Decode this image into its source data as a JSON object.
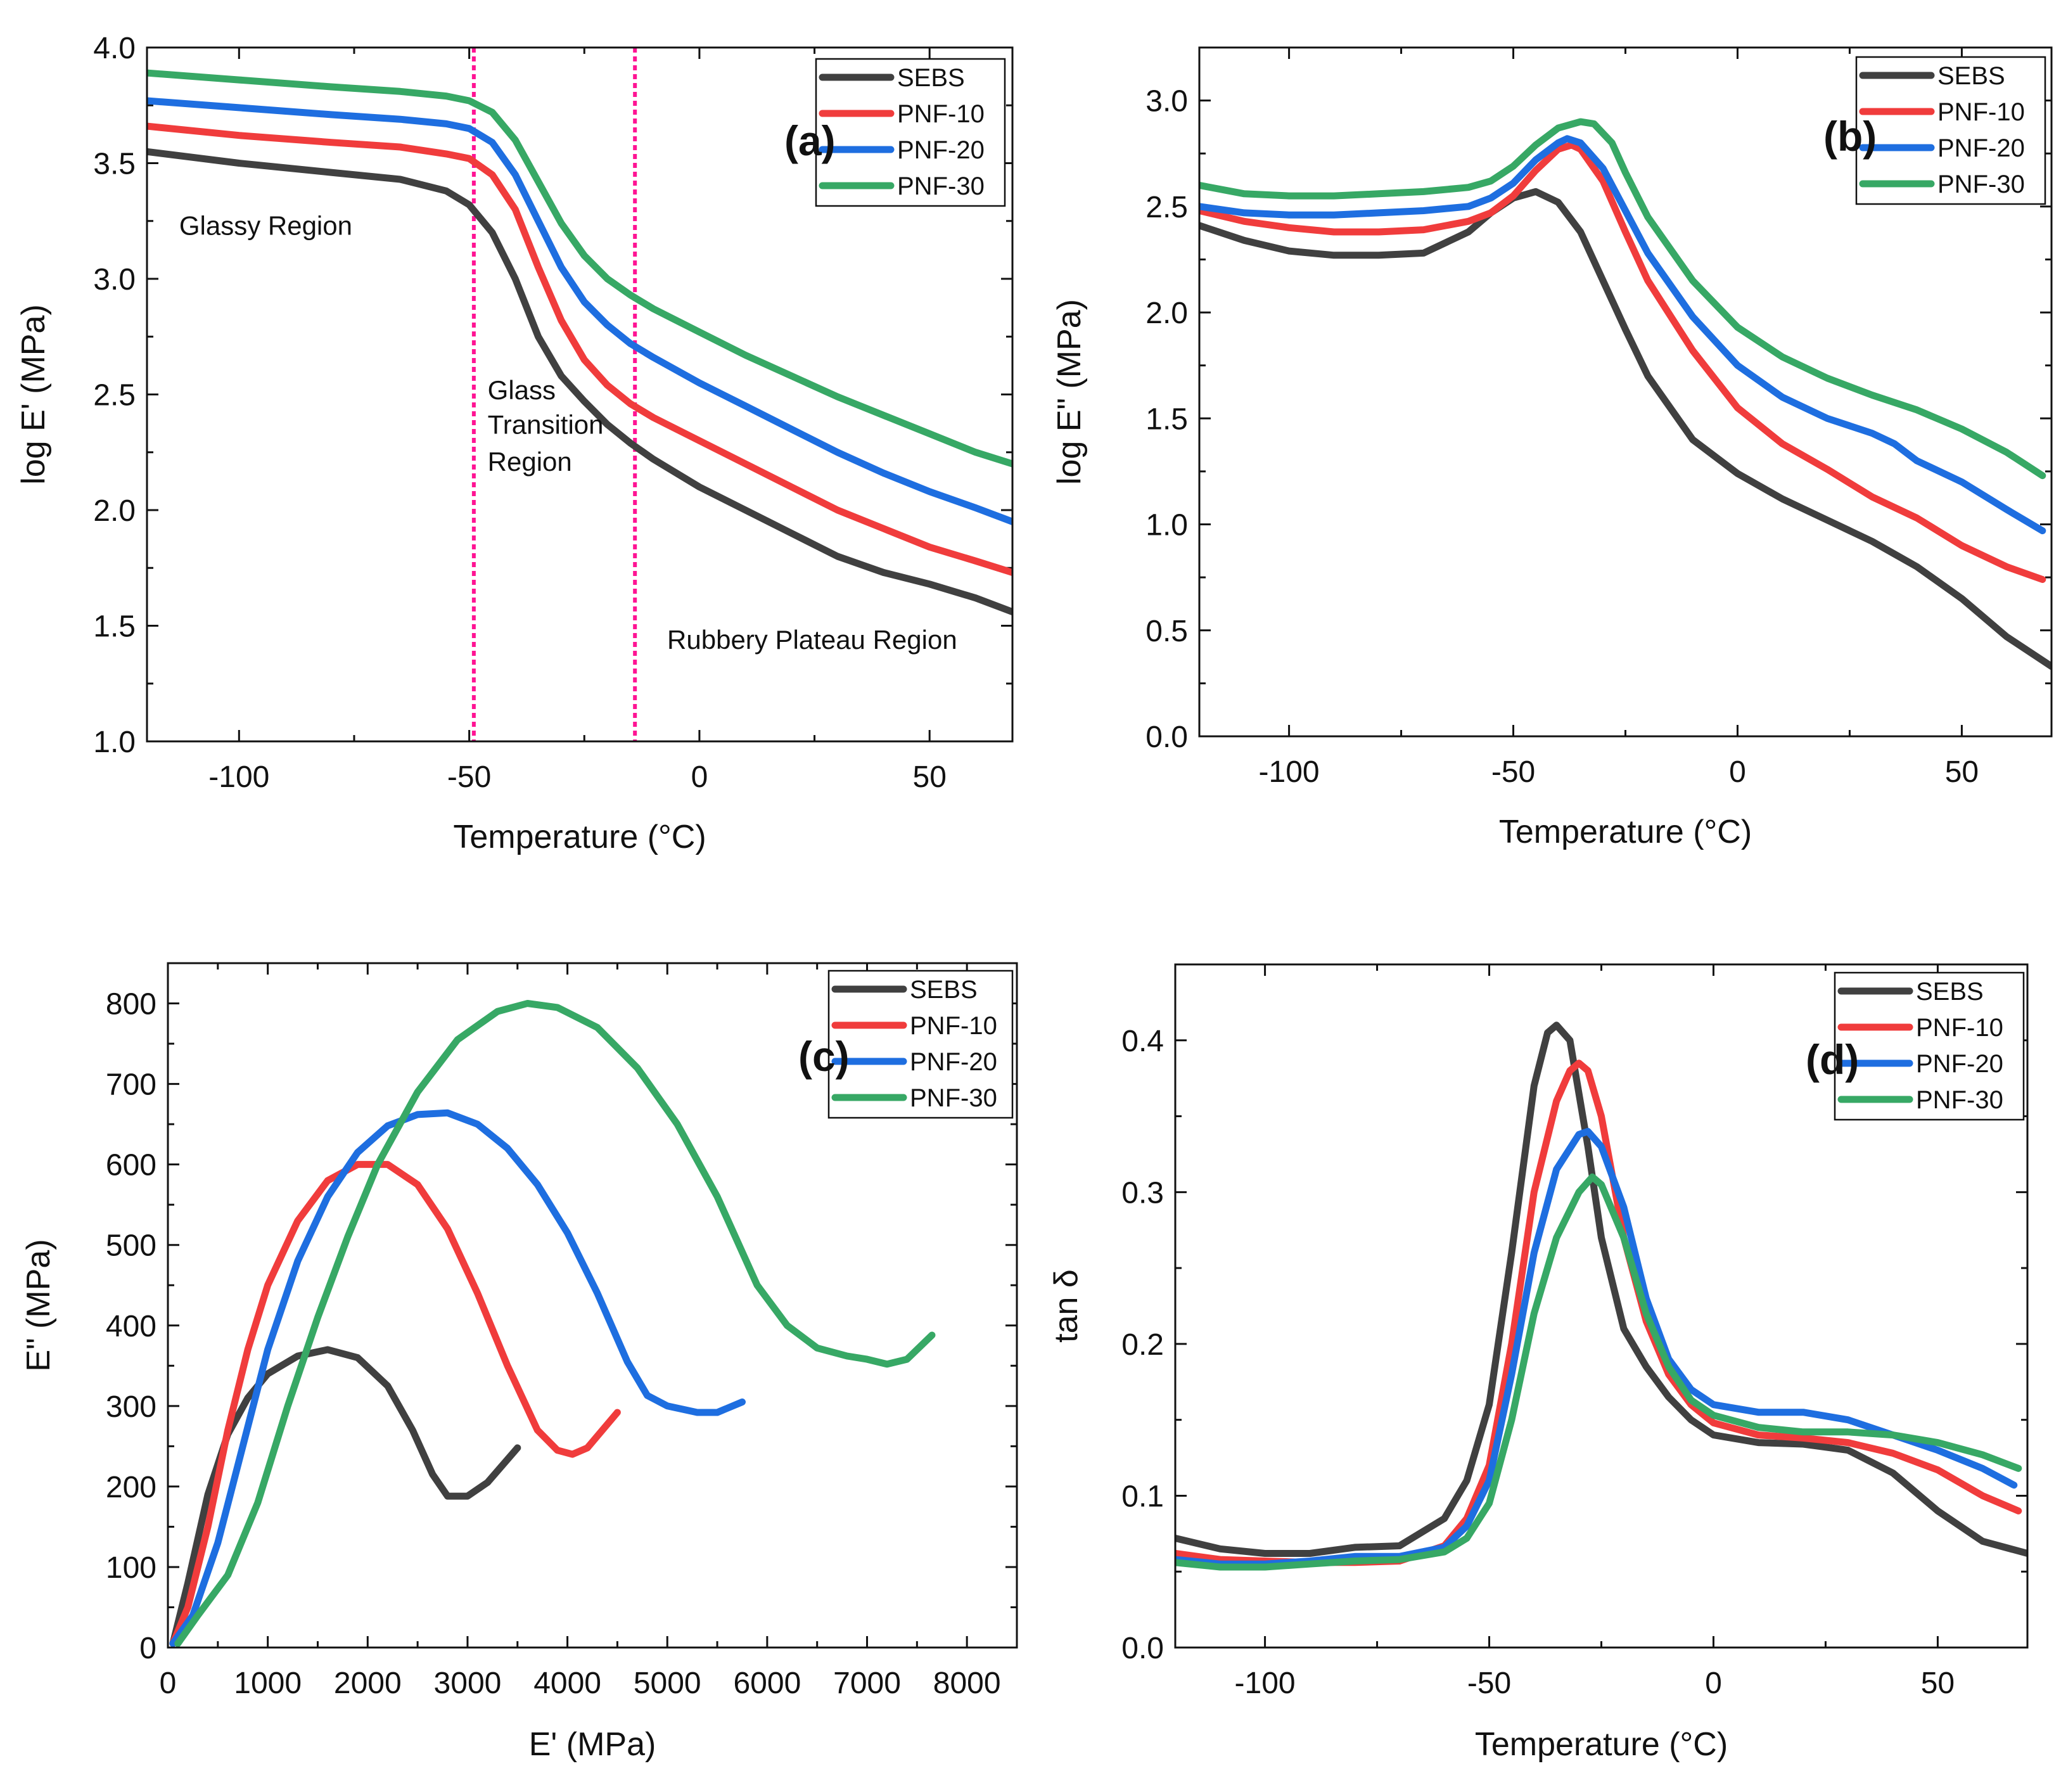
{
  "figure": {
    "colors": {
      "SEBS": "#404040",
      "PNF-10": "#f03c3c",
      "PNF-20": "#1e6ee0",
      "PNF-30": "#37a865",
      "marker": "#ff1493"
    }
  },
  "chart_data": [
    {
      "id": "a",
      "type": "line",
      "panel_label": "(a)",
      "xlabel": "Temperature (°C)",
      "ylabel": "log E' (MPa)",
      "xlim": [
        -120,
        68
      ],
      "ylim": [
        1.0,
        4.0
      ],
      "xticks": [
        -100,
        -50,
        0,
        50
      ],
      "xtick_labels": [
        "-100",
        "-50",
        "0",
        "50"
      ],
      "yticks": [
        1.0,
        1.5,
        2.0,
        2.5,
        3.0,
        3.5,
        4.0
      ],
      "ytick_labels": [
        "1.0",
        "1.5",
        "2.0",
        "2.5",
        "3.0",
        "3.5",
        "4.0"
      ],
      "legend": [
        "SEBS",
        "PNF-10",
        "PNF-20",
        "PNF-30"
      ],
      "annotations": [
        {
          "text": "Glassy Region",
          "x": -113,
          "y": 3.19
        },
        {
          "text": "Glass",
          "x": -46,
          "y": 2.48
        },
        {
          "text": "Transition",
          "x": -46,
          "y": 2.33
        },
        {
          "text": "Region",
          "x": -46,
          "y": 2.17
        },
        {
          "text": "Rubbery Plateau Region",
          "x": -7,
          "y": 1.4
        }
      ],
      "vlines": [
        -49,
        -14
      ],
      "series": [
        {
          "name": "SEBS",
          "x": [
            -120,
            -100,
            -80,
            -65,
            -55,
            -50,
            -45,
            -40,
            -35,
            -30,
            -25,
            -20,
            -15,
            -10,
            0,
            10,
            20,
            30,
            40,
            50,
            60,
            68
          ],
          "y": [
            3.55,
            3.5,
            3.46,
            3.43,
            3.38,
            3.32,
            3.2,
            3.0,
            2.75,
            2.58,
            2.47,
            2.37,
            2.29,
            2.22,
            2.1,
            2.0,
            1.9,
            1.8,
            1.73,
            1.68,
            1.62,
            1.56
          ]
        },
        {
          "name": "PNF-10",
          "x": [
            -120,
            -100,
            -80,
            -65,
            -55,
            -50,
            -45,
            -40,
            -35,
            -30,
            -25,
            -20,
            -15,
            -10,
            0,
            10,
            20,
            30,
            40,
            50,
            60,
            68
          ],
          "y": [
            3.66,
            3.62,
            3.59,
            3.57,
            3.54,
            3.52,
            3.45,
            3.3,
            3.05,
            2.82,
            2.65,
            2.54,
            2.46,
            2.4,
            2.3,
            2.2,
            2.1,
            2.0,
            1.92,
            1.84,
            1.78,
            1.73
          ]
        },
        {
          "name": "PNF-20",
          "x": [
            -120,
            -100,
            -80,
            -65,
            -55,
            -50,
            -45,
            -40,
            -35,
            -30,
            -25,
            -20,
            -15,
            -10,
            0,
            10,
            20,
            30,
            40,
            50,
            60,
            68
          ],
          "y": [
            3.77,
            3.74,
            3.71,
            3.69,
            3.67,
            3.65,
            3.59,
            3.45,
            3.25,
            3.05,
            2.9,
            2.8,
            2.72,
            2.66,
            2.55,
            2.45,
            2.35,
            2.25,
            2.16,
            2.08,
            2.01,
            1.95
          ]
        },
        {
          "name": "PNF-30",
          "x": [
            -120,
            -100,
            -80,
            -65,
            -55,
            -50,
            -45,
            -40,
            -35,
            -30,
            -25,
            -20,
            -15,
            -10,
            0,
            10,
            20,
            30,
            40,
            50,
            60,
            68
          ],
          "y": [
            3.89,
            3.86,
            3.83,
            3.81,
            3.79,
            3.77,
            3.72,
            3.6,
            3.42,
            3.24,
            3.1,
            3.0,
            2.93,
            2.87,
            2.77,
            2.67,
            2.58,
            2.49,
            2.41,
            2.33,
            2.25,
            2.2
          ]
        }
      ]
    },
    {
      "id": "b",
      "type": "line",
      "panel_label": "(b)",
      "xlabel": "Temperature (°C)",
      "ylabel": "log E\" (MPa)",
      "xlim": [
        -120,
        70
      ],
      "ylim": [
        0.0,
        3.25
      ],
      "xticks": [
        -100,
        -50,
        0,
        50
      ],
      "xtick_labels": [
        "-100",
        "-50",
        "0",
        "50"
      ],
      "yticks": [
        0.0,
        0.5,
        1.0,
        1.5,
        2.0,
        2.5,
        3.0
      ],
      "ytick_labels": [
        "0.0",
        "0.5",
        "1.0",
        "1.5",
        "2.0",
        "2.5",
        "3.0"
      ],
      "legend": [
        "SEBS",
        "PNF-10",
        "PNF-20",
        "PNF-30"
      ],
      "series": [
        {
          "name": "SEBS",
          "x": [
            -120,
            -110,
            -100,
            -90,
            -80,
            -70,
            -60,
            -55,
            -50,
            -45,
            -40,
            -35,
            -30,
            -25,
            -20,
            -10,
            0,
            10,
            20,
            30,
            40,
            50,
            60,
            70
          ],
          "y": [
            2.41,
            2.34,
            2.29,
            2.27,
            2.27,
            2.28,
            2.38,
            2.47,
            2.54,
            2.57,
            2.52,
            2.38,
            2.15,
            1.92,
            1.7,
            1.4,
            1.24,
            1.12,
            1.02,
            0.92,
            0.8,
            0.65,
            0.47,
            0.33
          ]
        },
        {
          "name": "PNF-10",
          "x": [
            -120,
            -110,
            -100,
            -90,
            -80,
            -70,
            -60,
            -55,
            -50,
            -45,
            -40,
            -37,
            -35,
            -30,
            -25,
            -20,
            -10,
            0,
            10,
            20,
            30,
            40,
            50,
            60,
            68
          ],
          "y": [
            2.48,
            2.43,
            2.4,
            2.38,
            2.38,
            2.39,
            2.43,
            2.47,
            2.55,
            2.67,
            2.77,
            2.79,
            2.77,
            2.62,
            2.38,
            2.15,
            1.82,
            1.55,
            1.38,
            1.26,
            1.13,
            1.03,
            0.9,
            0.8,
            0.74
          ]
        },
        {
          "name": "PNF-20",
          "x": [
            -120,
            -110,
            -100,
            -90,
            -80,
            -70,
            -60,
            -55,
            -50,
            -45,
            -40,
            -38,
            -35,
            -30,
            -25,
            -20,
            -10,
            0,
            10,
            20,
            30,
            35,
            40,
            50,
            60,
            68
          ],
          "y": [
            2.5,
            2.47,
            2.46,
            2.46,
            2.47,
            2.48,
            2.5,
            2.54,
            2.61,
            2.72,
            2.8,
            2.82,
            2.8,
            2.68,
            2.48,
            2.28,
            1.98,
            1.75,
            1.6,
            1.5,
            1.43,
            1.38,
            1.3,
            1.2,
            1.07,
            0.97
          ]
        },
        {
          "name": "PNF-30",
          "x": [
            -120,
            -110,
            -100,
            -90,
            -80,
            -70,
            -60,
            -55,
            -50,
            -45,
            -40,
            -35,
            -32,
            -28,
            -25,
            -20,
            -10,
            0,
            10,
            20,
            30,
            40,
            50,
            60,
            68
          ],
          "y": [
            2.6,
            2.56,
            2.55,
            2.55,
            2.56,
            2.57,
            2.59,
            2.62,
            2.69,
            2.79,
            2.87,
            2.9,
            2.89,
            2.8,
            2.66,
            2.45,
            2.15,
            1.93,
            1.79,
            1.69,
            1.61,
            1.54,
            1.45,
            1.34,
            1.23
          ]
        }
      ]
    },
    {
      "id": "c",
      "type": "line",
      "panel_label": "(c)",
      "xlabel": "E' (MPa)",
      "ylabel": "E\" (MPa)",
      "xlim": [
        0,
        8500
      ],
      "ylim": [
        0,
        850
      ],
      "xticks": [
        0,
        1000,
        2000,
        3000,
        4000,
        5000,
        6000,
        7000,
        8000
      ],
      "xtick_labels": [
        "0",
        "1000",
        "2000",
        "3000",
        "4000",
        "5000",
        "6000",
        "7000",
        "8000"
      ],
      "yticks": [
        0,
        100,
        200,
        300,
        400,
        500,
        600,
        700,
        800
      ],
      "ytick_labels": [
        "0",
        "100",
        "200",
        "300",
        "400",
        "500",
        "600",
        "700",
        "800"
      ],
      "legend": [
        "SEBS",
        "PNF-10",
        "PNF-20",
        "PNF-30"
      ],
      "series": [
        {
          "name": "SEBS",
          "x": [
            50,
            200,
            400,
            600,
            800,
            1000,
            1300,
            1600,
            1900,
            2200,
            2450,
            2650,
            2800,
            3000,
            3200,
            3500
          ],
          "y": [
            5,
            80,
            190,
            265,
            310,
            340,
            362,
            370,
            360,
            325,
            270,
            215,
            188,
            188,
            205,
            248
          ]
        },
        {
          "name": "PNF-10",
          "x": [
            50,
            200,
            400,
            600,
            800,
            1000,
            1300,
            1600,
            1900,
            2200,
            2500,
            2800,
            3100,
            3400,
            3700,
            3900,
            4050,
            4200,
            4500
          ],
          "y": [
            5,
            50,
            150,
            270,
            370,
            450,
            530,
            580,
            600,
            600,
            575,
            520,
            440,
            350,
            270,
            245,
            240,
            248,
            292
          ]
        },
        {
          "name": "PNF-20",
          "x": [
            50,
            250,
            500,
            750,
            1000,
            1300,
            1600,
            1900,
            2200,
            2500,
            2800,
            3100,
            3400,
            3700,
            4000,
            4300,
            4600,
            4800,
            5000,
            5300,
            5500,
            5750
          ],
          "y": [
            5,
            40,
            130,
            250,
            370,
            480,
            560,
            615,
            648,
            662,
            664,
            650,
            620,
            575,
            515,
            440,
            355,
            313,
            300,
            292,
            292,
            305
          ]
        },
        {
          "name": "PNF-30",
          "x": [
            100,
            300,
            600,
            900,
            1200,
            1500,
            1800,
            2100,
            2500,
            2900,
            3300,
            3600,
            3900,
            4300,
            4700,
            5100,
            5500,
            5900,
            6200,
            6500,
            6800,
            7000,
            7200,
            7400,
            7650
          ],
          "y": [
            5,
            40,
            90,
            180,
            300,
            410,
            510,
            600,
            690,
            755,
            790,
            800,
            795,
            770,
            720,
            650,
            560,
            450,
            400,
            372,
            362,
            358,
            352,
            358,
            388
          ]
        }
      ]
    },
    {
      "id": "d",
      "type": "line",
      "panel_label": "(d)",
      "xlabel": "Temperature (°C)",
      "ylabel": "tan δ",
      "xlim": [
        -120,
        70
      ],
      "ylim": [
        0.0,
        0.45
      ],
      "xticks": [
        -100,
        -50,
        0,
        50
      ],
      "xtick_labels": [
        "-100",
        "-50",
        "0",
        "50"
      ],
      "yticks": [
        0.0,
        0.1,
        0.2,
        0.3,
        0.4
      ],
      "ytick_labels": [
        "0.0",
        "0.1",
        "0.2",
        "0.3",
        "0.4"
      ],
      "legend": [
        "SEBS",
        "PNF-10",
        "PNF-20",
        "PNF-30"
      ],
      "series": [
        {
          "name": "SEBS",
          "x": [
            -120,
            -110,
            -100,
            -90,
            -80,
            -70,
            -60,
            -55,
            -50,
            -45,
            -40,
            -37,
            -35,
            -32,
            -28,
            -25,
            -20,
            -15,
            -10,
            -5,
            0,
            10,
            20,
            30,
            40,
            50,
            60,
            70
          ],
          "y": [
            0.072,
            0.065,
            0.062,
            0.062,
            0.066,
            0.067,
            0.085,
            0.11,
            0.16,
            0.26,
            0.37,
            0.405,
            0.41,
            0.4,
            0.33,
            0.27,
            0.21,
            0.185,
            0.165,
            0.15,
            0.14,
            0.135,
            0.134,
            0.13,
            0.115,
            0.09,
            0.07,
            0.062
          ]
        },
        {
          "name": "PNF-10",
          "x": [
            -120,
            -110,
            -100,
            -90,
            -80,
            -70,
            -60,
            -55,
            -50,
            -45,
            -40,
            -35,
            -32,
            -30,
            -28,
            -25,
            -20,
            -15,
            -10,
            -5,
            0,
            10,
            20,
            30,
            40,
            50,
            60,
            68
          ],
          "y": [
            0.062,
            0.058,
            0.057,
            0.056,
            0.056,
            0.057,
            0.067,
            0.085,
            0.12,
            0.2,
            0.3,
            0.36,
            0.38,
            0.385,
            0.38,
            0.35,
            0.27,
            0.215,
            0.18,
            0.16,
            0.148,
            0.14,
            0.138,
            0.135,
            0.128,
            0.117,
            0.1,
            0.09
          ]
        },
        {
          "name": "PNF-20",
          "x": [
            -120,
            -110,
            -100,
            -90,
            -80,
            -70,
            -60,
            -55,
            -50,
            -45,
            -40,
            -35,
            -30,
            -28,
            -25,
            -20,
            -15,
            -10,
            -5,
            0,
            10,
            20,
            30,
            40,
            50,
            60,
            67
          ],
          "y": [
            0.058,
            0.055,
            0.055,
            0.057,
            0.06,
            0.06,
            0.066,
            0.08,
            0.11,
            0.18,
            0.26,
            0.315,
            0.338,
            0.34,
            0.33,
            0.29,
            0.23,
            0.19,
            0.17,
            0.16,
            0.155,
            0.155,
            0.15,
            0.14,
            0.13,
            0.118,
            0.107
          ]
        },
        {
          "name": "PNF-30",
          "x": [
            -120,
            -110,
            -100,
            -90,
            -80,
            -70,
            -60,
            -55,
            -50,
            -45,
            -40,
            -35,
            -30,
            -27,
            -25,
            -20,
            -15,
            -10,
            -5,
            0,
            10,
            20,
            30,
            40,
            50,
            60,
            68
          ],
          "y": [
            0.056,
            0.053,
            0.053,
            0.055,
            0.057,
            0.058,
            0.063,
            0.072,
            0.095,
            0.15,
            0.22,
            0.27,
            0.3,
            0.31,
            0.305,
            0.27,
            0.22,
            0.185,
            0.163,
            0.153,
            0.145,
            0.142,
            0.142,
            0.14,
            0.135,
            0.127,
            0.118
          ]
        }
      ]
    }
  ]
}
